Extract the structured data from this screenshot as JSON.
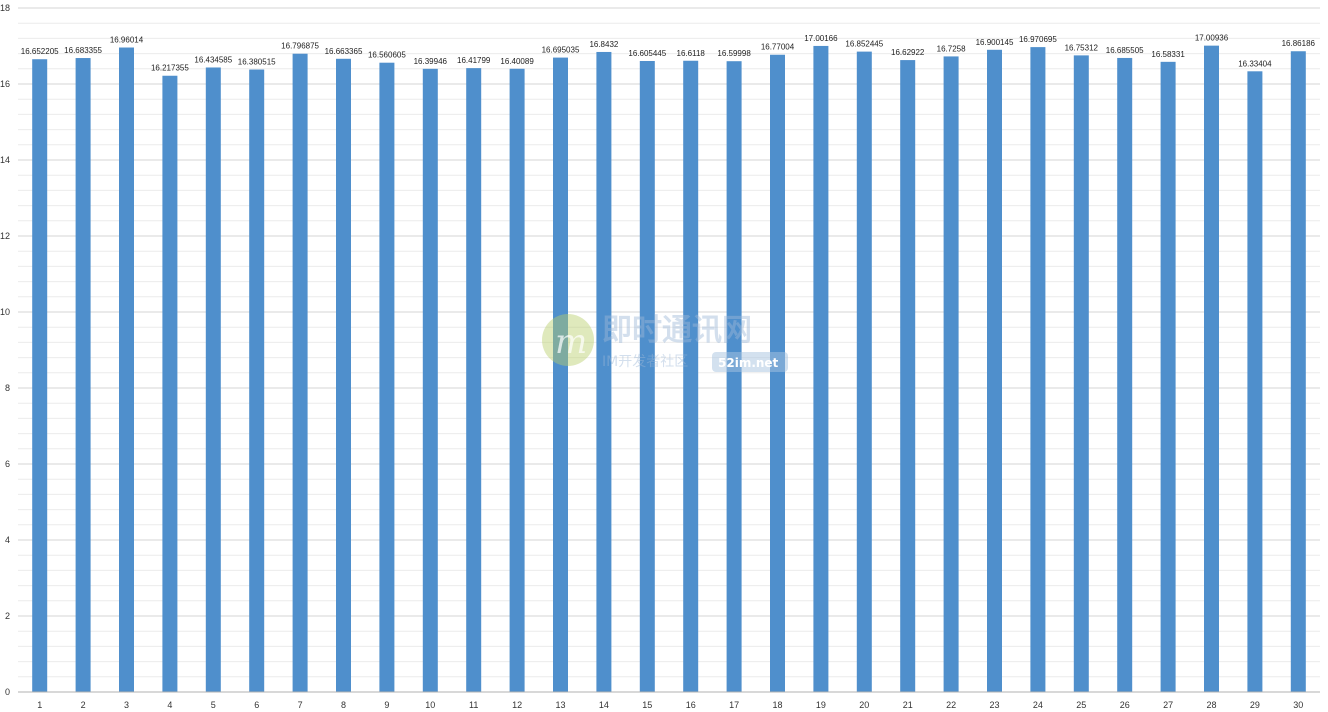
{
  "chart_data": {
    "type": "bar",
    "categories": [
      "1",
      "2",
      "3",
      "4",
      "5",
      "6",
      "7",
      "8",
      "9",
      "10",
      "11",
      "12",
      "13",
      "14",
      "15",
      "16",
      "17",
      "18",
      "19",
      "20",
      "21",
      "22",
      "23",
      "24",
      "25",
      "26",
      "27",
      "28",
      "29",
      "30"
    ],
    "values": [
      16.652205,
      16.683355,
      16.96014,
      16.217355,
      16.434585,
      16.380515,
      16.796875,
      16.663365,
      16.560605,
      16.39946,
      16.41799,
      16.40089,
      16.695035,
      16.8432,
      16.605445,
      16.6118,
      16.59998,
      16.77004,
      17.00166,
      16.852445,
      16.62922,
      16.7258,
      16.900145,
      16.970695,
      16.75312,
      16.685505,
      16.58331,
      17.00936,
      16.33404,
      16.86186
    ],
    "data_labels": [
      "16.652205",
      "16.683355",
      "16.96014",
      "16.217355",
      "16.434585",
      "16.380515",
      "16.796875",
      "16.663365",
      "16.560605",
      "16.39946",
      "16.41799",
      "16.40089",
      "16.695035",
      "16.8432",
      "16.605445",
      "16.6118",
      "16.59998",
      "16.77004",
      "17.00166",
      "16.852445",
      "16.62922",
      "16.7258",
      "16.900145",
      "16.970695",
      "16.75312",
      "16.685505",
      "16.58331",
      "17.00936",
      "16.33404",
      "16.86186"
    ],
    "ylim": [
      0,
      18
    ],
    "yticks": [
      0,
      2,
      4,
      6,
      8,
      10,
      12,
      14,
      16,
      18
    ],
    "grid": true,
    "minor_grid": true,
    "title": "",
    "xlabel": "",
    "ylabel": ""
  },
  "colors": {
    "bar": "#4f8fcc",
    "major_grid": "#d4d4d4",
    "minor_grid": "#ececec",
    "axis": "#b0b0b0"
  },
  "watermark": {
    "title": "即时通讯网",
    "subtitle": "IM开发者社区",
    "domain": "52im.net"
  }
}
